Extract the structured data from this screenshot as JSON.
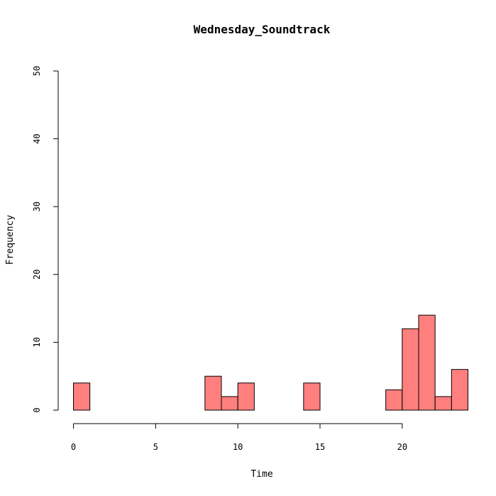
{
  "chart_data": {
    "type": "bar",
    "title": "Wednesday_Soundtrack",
    "xlabel": "Time",
    "ylabel": "Frequency",
    "xlim": [
      0,
      24
    ],
    "ylim": [
      0,
      50
    ],
    "x_ticks": [
      0,
      5,
      10,
      15,
      20
    ],
    "y_ticks": [
      0,
      10,
      20,
      30,
      40,
      50
    ],
    "bar_color": "#FF7F7F",
    "grid": false,
    "bins": [
      {
        "start": 0,
        "end": 1,
        "count": 4
      },
      {
        "start": 1,
        "end": 2,
        "count": 0
      },
      {
        "start": 2,
        "end": 3,
        "count": 0
      },
      {
        "start": 3,
        "end": 4,
        "count": 0
      },
      {
        "start": 4,
        "end": 5,
        "count": 0
      },
      {
        "start": 5,
        "end": 6,
        "count": 0
      },
      {
        "start": 6,
        "end": 7,
        "count": 0
      },
      {
        "start": 7,
        "end": 8,
        "count": 0
      },
      {
        "start": 8,
        "end": 9,
        "count": 5
      },
      {
        "start": 9,
        "end": 10,
        "count": 2
      },
      {
        "start": 10,
        "end": 11,
        "count": 4
      },
      {
        "start": 11,
        "end": 12,
        "count": 0
      },
      {
        "start": 12,
        "end": 13,
        "count": 0
      },
      {
        "start": 13,
        "end": 14,
        "count": 0
      },
      {
        "start": 14,
        "end": 15,
        "count": 4
      },
      {
        "start": 15,
        "end": 16,
        "count": 0
      },
      {
        "start": 16,
        "end": 17,
        "count": 0
      },
      {
        "start": 17,
        "end": 18,
        "count": 0
      },
      {
        "start": 18,
        "end": 19,
        "count": 0
      },
      {
        "start": 19,
        "end": 20,
        "count": 3
      },
      {
        "start": 20,
        "end": 21,
        "count": 12
      },
      {
        "start": 21,
        "end": 22,
        "count": 14
      },
      {
        "start": 22,
        "end": 23,
        "count": 2
      },
      {
        "start": 23,
        "end": 24,
        "count": 6
      }
    ]
  }
}
